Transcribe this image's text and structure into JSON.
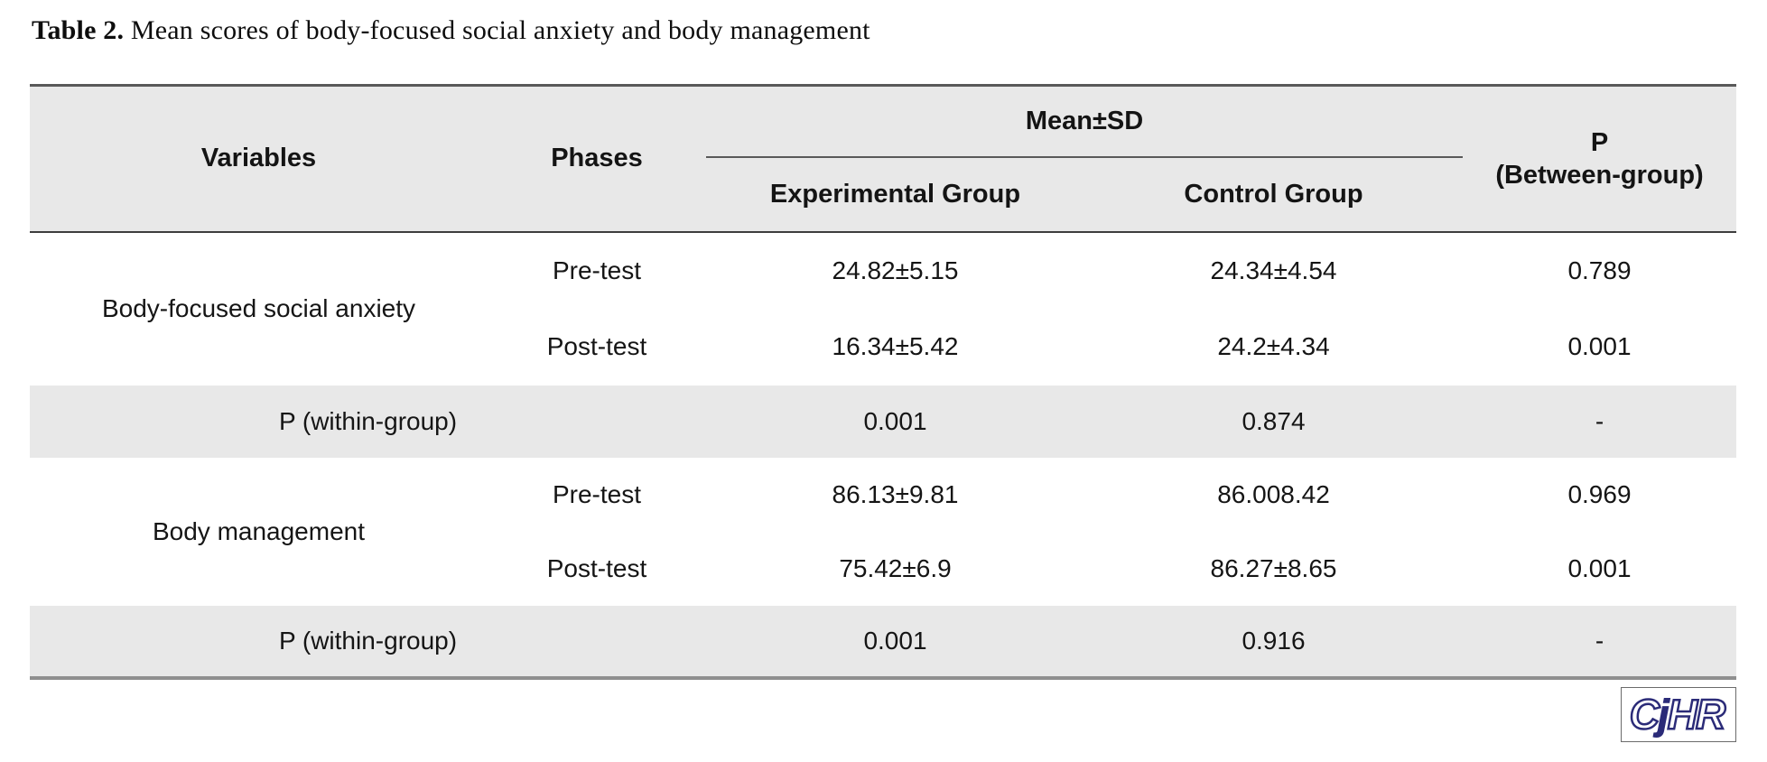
{
  "title": {
    "label": "Table 2.",
    "text": " Mean scores of body-focused social anxiety and body management"
  },
  "table": {
    "headers": {
      "variables": "Variables",
      "phases": "Phases",
      "mean_sd": "Mean±SD",
      "experimental": "Experimental Group",
      "control": "Control Group",
      "p_between_line1": "P",
      "p_between_line2": "(Between-group)"
    },
    "sections": [
      {
        "variable": "Body-focused social anxiety",
        "rows": [
          {
            "phase": "Pre-test",
            "experimental": "24.82±5.15",
            "control": "24.34±4.54",
            "p": "0.789"
          },
          {
            "phase": "Post-test",
            "experimental": "16.34±5.42",
            "control": "24.2±4.34",
            "p": "0.001"
          }
        ],
        "within": {
          "label": "P (within-group)",
          "experimental": "0.001",
          "control": "0.874",
          "p": "-"
        }
      },
      {
        "variable": "Body management",
        "rows": [
          {
            "phase": "Pre-test",
            "experimental": "86.13±9.81",
            "control": "86.008.42",
            "p": "0.969"
          },
          {
            "phase": "Post-test",
            "experimental": "75.42±6.9",
            "control": "86.27±8.65",
            "p": "0.001"
          }
        ],
        "within": {
          "label": "P (within-group)",
          "experimental": "0.001",
          "control": "0.916",
          "p": "-"
        }
      }
    ]
  },
  "logo": {
    "part1": "C",
    "part2": "j",
    "part3": "HR"
  },
  "colors": {
    "band_gray": "#e8e8e8",
    "rule_dark": "#595959",
    "rule_bottom": "#8f8f8f",
    "logo_navy": "#2b2b78"
  }
}
